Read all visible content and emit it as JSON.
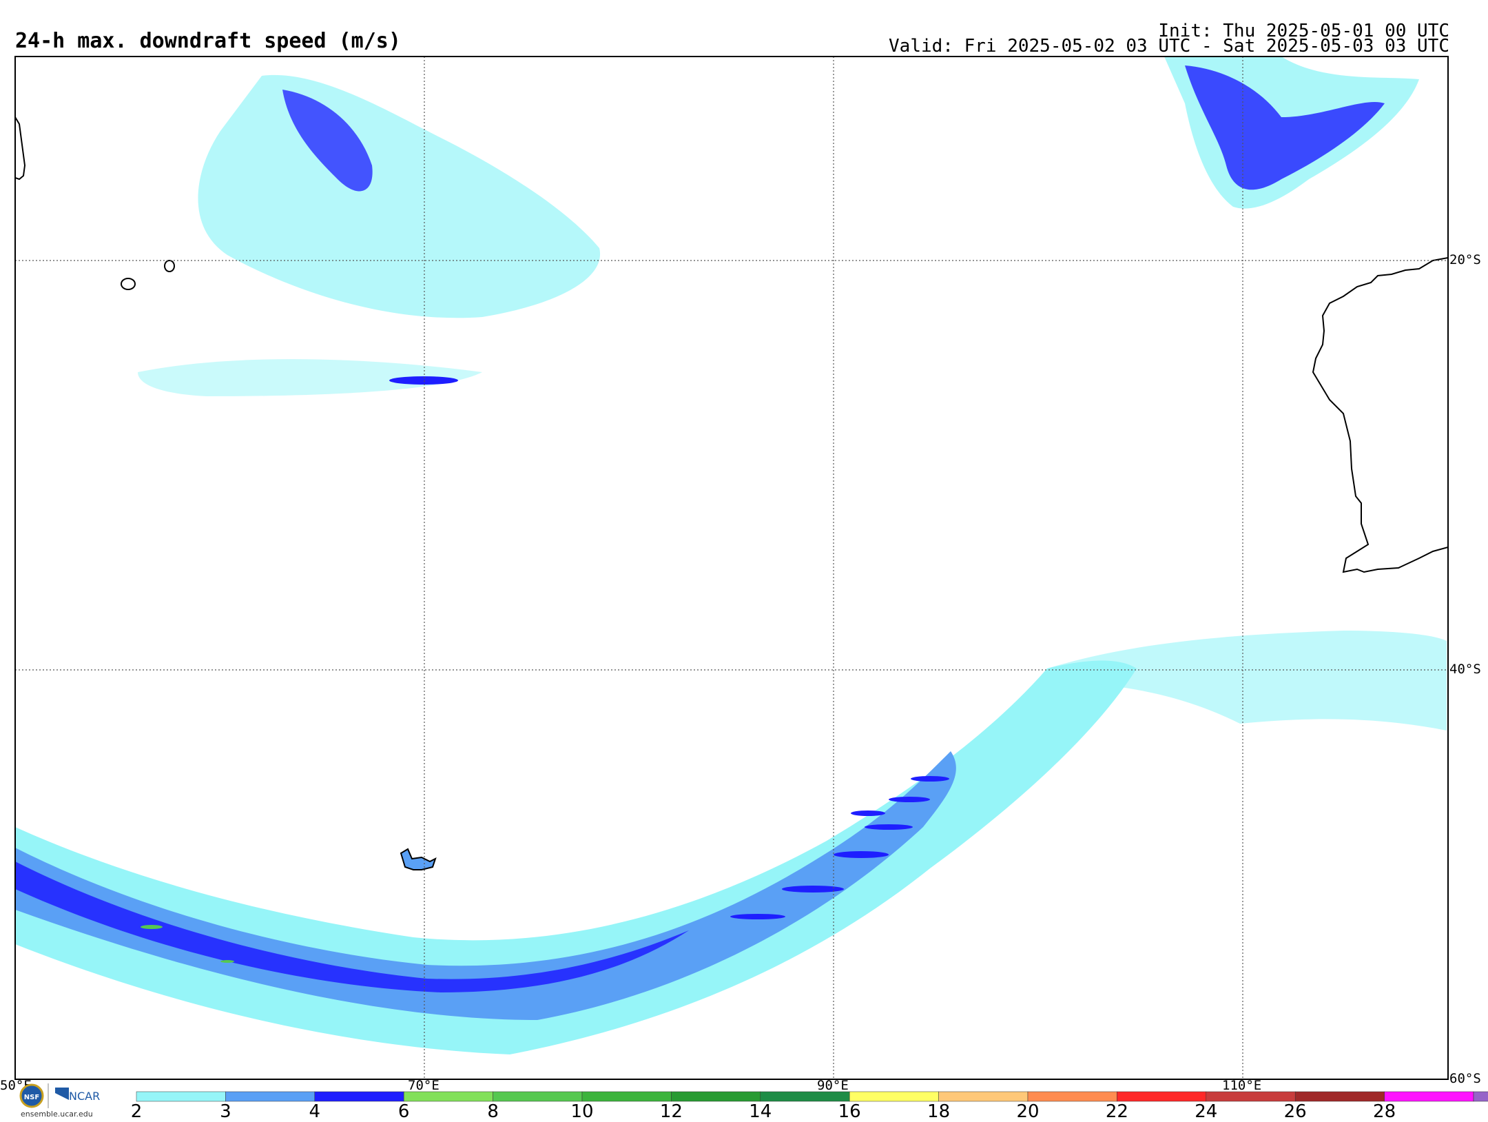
{
  "header": {
    "title": "24-h max. downdraft speed (m/s)",
    "init": "Init: Thu 2025-05-01 00 UTC",
    "valid": "Valid: Fri 2025-05-02 03 UTC - Sat 2025-05-03 03 UTC"
  },
  "map": {
    "projection": "lat-lon",
    "lon_range": [
      50,
      120
    ],
    "lat_range": [
      -60,
      -10
    ],
    "grid_style": "dotted",
    "lon_labels": [
      "50°E",
      "70°E",
      "90°E",
      "110°E"
    ],
    "lat_labels": [
      "20°S",
      "40°S",
      "60°S"
    ],
    "features": [
      "Madagascar east coast",
      "Réunion",
      "Mauritius",
      "Kerguelen Islands",
      "Western Australia coastline"
    ]
  },
  "colorbar": {
    "ticks": [
      "2",
      "3",
      "4",
      "6",
      "8",
      "10",
      "12",
      "14",
      "16",
      "18",
      "20",
      "22",
      "24",
      "26",
      "28"
    ],
    "colors": [
      "#96f5f8",
      "#5aa0f5",
      "#1e1eff",
      "#82e05a",
      "#56c850",
      "#3cb43c",
      "#289b32",
      "#1e8c46",
      "#ffff64",
      "#ffc878",
      "#ff8c50",
      "#ff2828",
      "#c83c3c",
      "#a02828",
      "#ff14ff",
      "#9664c8"
    ]
  },
  "branding": {
    "url": "ensemble.ucar.edu",
    "ncar": "NCAR",
    "nsf": "NSF"
  }
}
